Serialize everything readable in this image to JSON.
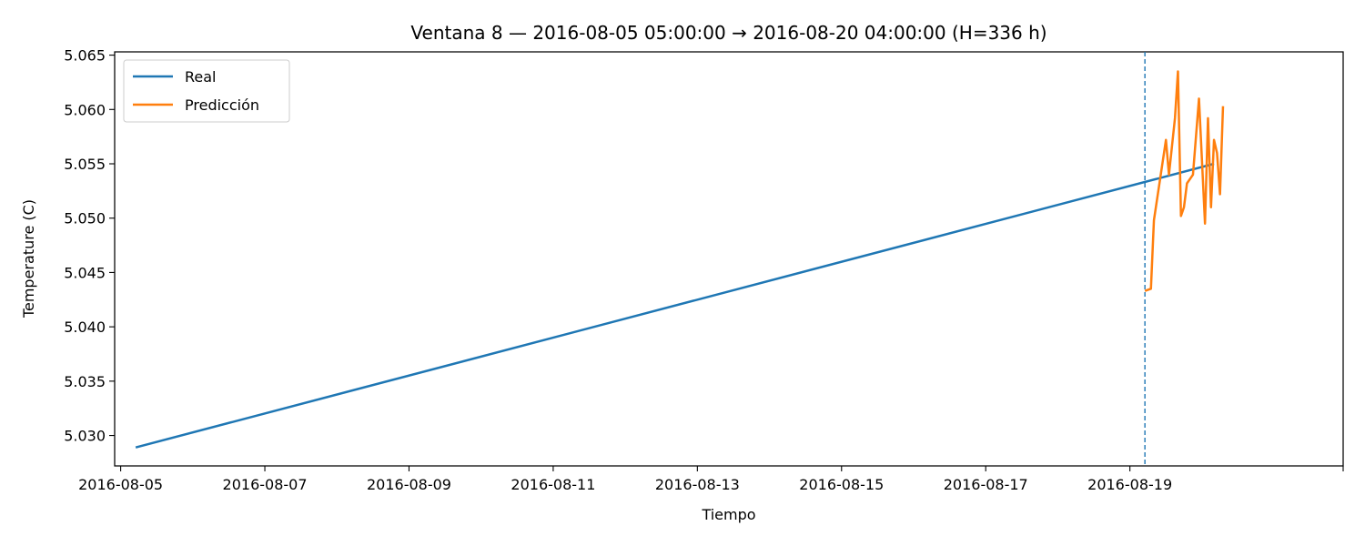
{
  "chart_data": {
    "type": "line",
    "title": "Ventana 8 — 2016-08-05 05:00:00 → 2016-08-20 04:00:00 (H=336 h)",
    "xlabel": "Tiempo",
    "ylabel": "Temperature (C)",
    "xlim": [
      "2016-08-04T22:00:00",
      "2016-08-21T23:00:00"
    ],
    "ylim": [
      5.0272,
      5.0653
    ],
    "x_ticks": [
      "2016-08-05",
      "2016-08-07",
      "2016-08-09",
      "2016-08-11",
      "2016-08-13",
      "2016-08-15",
      "2016-08-17",
      "2016-08-19"
    ],
    "y_ticks": [
      "5.030",
      "5.035",
      "5.040",
      "5.045",
      "5.050",
      "5.055",
      "5.060",
      "5.065"
    ],
    "grid": false,
    "legend_position": "top-left",
    "forecast_start": "2016-08-19T05:00:00",
    "series": [
      {
        "name": "Real",
        "color": "#1f77b4",
        "points": [
          [
            "2016-08-05T05:00:00",
            5.0289
          ],
          [
            "2016-08-20T04:00:00",
            5.055
          ]
        ]
      },
      {
        "name": "Predicción",
        "color": "#ff7f0e",
        "points": [
          [
            "2016-08-19T05:00:00",
            5.0433
          ],
          [
            "2016-08-19T07:00:00",
            5.0435
          ],
          [
            "2016-08-19T08:00:00",
            5.0498
          ],
          [
            "2016-08-19T10:00:00",
            5.0535
          ],
          [
            "2016-08-19T12:00:00",
            5.0572
          ],
          [
            "2016-08-19T13:00:00",
            5.054
          ],
          [
            "2016-08-19T15:00:00",
            5.0592
          ],
          [
            "2016-08-19T16:00:00",
            5.0635
          ],
          [
            "2016-08-19T17:00:00",
            5.0502
          ],
          [
            "2016-08-19T18:00:00",
            5.051
          ],
          [
            "2016-08-19T19:00:00",
            5.0532
          ],
          [
            "2016-08-19T21:00:00",
            5.054
          ],
          [
            "2016-08-19T23:00:00",
            5.061
          ],
          [
            "2016-08-20T01:00:00",
            5.0495
          ],
          [
            "2016-08-20T02:00:00",
            5.0592
          ],
          [
            "2016-08-20T03:00:00",
            5.051
          ],
          [
            "2016-08-20T04:00:00",
            5.0572
          ],
          [
            "2016-08-20T05:00:00",
            5.056
          ],
          [
            "2016-08-20T06:00:00",
            5.0522
          ],
          [
            "2016-08-20T07:00:00",
            5.0603
          ]
        ]
      }
    ]
  }
}
